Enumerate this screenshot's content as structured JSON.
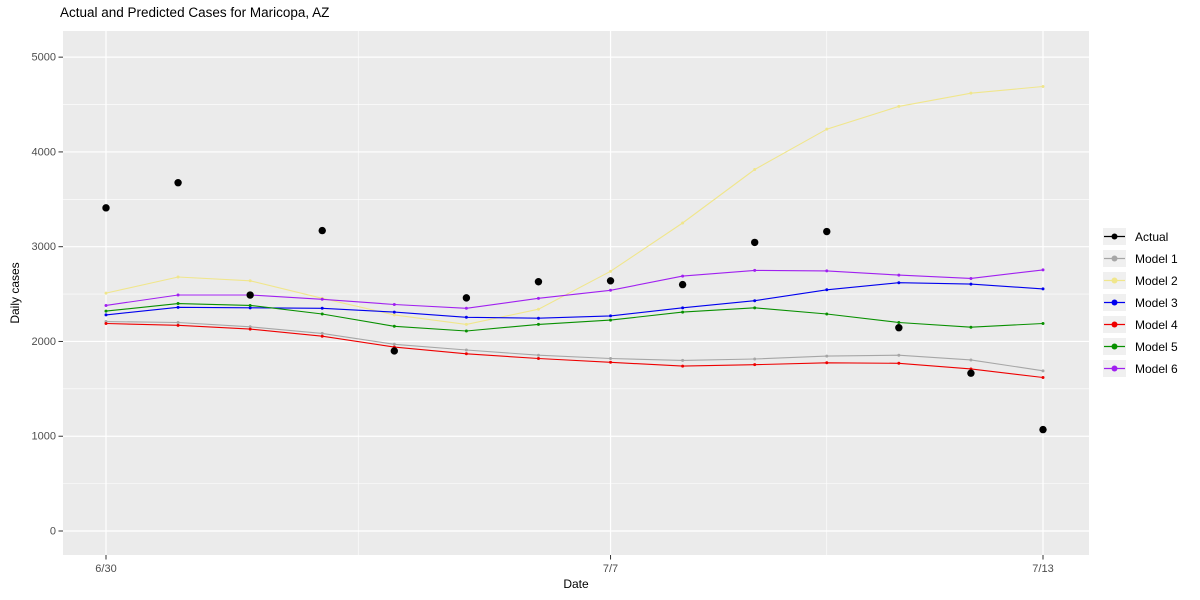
{
  "title": "Actual and Predicted Cases for Maricopa, AZ",
  "axes": {
    "x_label": "Date",
    "y_label": "Daily cases"
  },
  "legend": {
    "items": [
      {
        "label": "Actual",
        "color": "#000000"
      },
      {
        "label": "Model 1",
        "color": "#a6a6a6"
      },
      {
        "label": "Model 2",
        "color": "#f0e68c"
      },
      {
        "label": "Model 3",
        "color": "#0000ee"
      },
      {
        "label": "Model 4",
        "color": "#ee0000"
      },
      {
        "label": "Model 5",
        "color": "#089000"
      },
      {
        "label": "Model 6",
        "color": "#a020f0"
      }
    ]
  },
  "chart_data": {
    "type": "line",
    "title": "Actual and Predicted Cases for Maricopa, AZ",
    "xlabel": "Date",
    "ylabel": "Daily cases",
    "panel_bg": "#ebebeb",
    "gridline_color": "#ffffff",
    "tick_color": "#333333",
    "tick_label_color": "#4d4d4d",
    "legend_key_bg": "#f0f0f0",
    "ylim": [
      0,
      5000
    ],
    "y_major_ticks": [
      0,
      1000,
      2000,
      3000,
      4000,
      5000
    ],
    "y_minor_ticks": [
      500,
      1500,
      2500,
      3500,
      4500
    ],
    "x_dates": [
      "6/30",
      "7/1",
      "7/2",
      "7/3",
      "7/4",
      "7/5",
      "7/6",
      "7/7",
      "7/8",
      "7/9",
      "7/10",
      "7/11",
      "7/12",
      "7/13"
    ],
    "x_tick_labels": [
      "6/30",
      "7/7",
      "7/13"
    ],
    "x_tick_days": [
      0,
      7,
      13
    ],
    "x_minor_days": [
      3.5,
      10
    ],
    "series": [
      {
        "name": "Actual",
        "style": "points",
        "color": "#000000",
        "values": [
          3410,
          3675,
          2490,
          3170,
          1900,
          2460,
          2630,
          2640,
          2600,
          3045,
          3160,
          2145,
          1665,
          1070
        ]
      },
      {
        "name": "Model 1",
        "style": "line",
        "color": "#a6a6a6",
        "values": [
          2210,
          2200,
          2155,
          2085,
          1970,
          1910,
          1855,
          1820,
          1800,
          1815,
          1845,
          1855,
          1805,
          1690
        ]
      },
      {
        "name": "Model 2",
        "style": "line",
        "color": "#f0e68c",
        "values": [
          2510,
          2680,
          2640,
          2455,
          2280,
          2180,
          2340,
          2740,
          3250,
          3815,
          4240,
          4480,
          4620,
          4690
        ]
      },
      {
        "name": "Model 3",
        "style": "line",
        "color": "#0000ee",
        "values": [
          2280,
          2360,
          2355,
          2350,
          2310,
          2255,
          2245,
          2270,
          2355,
          2430,
          2545,
          2620,
          2605,
          2555
        ]
      },
      {
        "name": "Model 4",
        "style": "line",
        "color": "#ee0000",
        "values": [
          2190,
          2170,
          2130,
          2055,
          1940,
          1870,
          1820,
          1780,
          1740,
          1755,
          1775,
          1770,
          1710,
          1620
        ]
      },
      {
        "name": "Model 5",
        "style": "line",
        "color": "#089000",
        "values": [
          2320,
          2400,
          2380,
          2290,
          2160,
          2110,
          2180,
          2225,
          2310,
          2355,
          2290,
          2200,
          2150,
          2190
        ]
      },
      {
        "name": "Model 6",
        "style": "line",
        "color": "#a020f0",
        "values": [
          2380,
          2490,
          2490,
          2445,
          2390,
          2350,
          2455,
          2540,
          2690,
          2750,
          2745,
          2700,
          2665,
          2755
        ]
      }
    ]
  }
}
